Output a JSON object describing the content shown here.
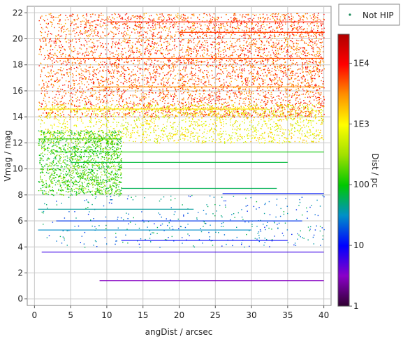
{
  "chart_data": {
    "type": "scatter",
    "xlabel": "angDist / arcsec",
    "ylabel": "Vmag / mag",
    "xlim": [
      -1,
      41
    ],
    "ylim": [
      -0.5,
      22.5
    ],
    "xticks": [
      "0",
      "5",
      "10",
      "15",
      "20",
      "25",
      "30",
      "35",
      "40"
    ],
    "xtick_values": [
      0,
      5,
      10,
      15,
      20,
      25,
      30,
      35,
      40
    ],
    "yticks": [
      "0",
      "2",
      "4",
      "6",
      "8",
      "10",
      "12",
      "14",
      "16",
      "18",
      "20",
      "22"
    ],
    "ytick_values": [
      0,
      2,
      4,
      6,
      8,
      10,
      12,
      14,
      16,
      18,
      20,
      22
    ],
    "grid": true,
    "legend": {
      "position": "top-right",
      "entries": [
        {
          "name": "Not HIP",
          "color": "#1a8a5a"
        }
      ]
    },
    "colorbar": {
      "label": "Dist / pc",
      "scale": "log",
      "range": [
        1,
        30000
      ],
      "ticks": [
        "1",
        "10",
        "100",
        "1E3",
        "1E4"
      ],
      "tick_values": [
        1,
        10,
        100,
        1000,
        10000
      ],
      "colormap": [
        "#300030",
        "#8a00c8",
        "#0000ff",
        "#0090c8",
        "#00c800",
        "#a0e000",
        "#ffff00",
        "#ff9000",
        "#ff0000",
        "#b00000"
      ]
    },
    "density_regions": [
      {
        "x_range": [
          0.5,
          40
        ],
        "vmag_range": [
          14,
          22
        ],
        "dist_pc": 5000,
        "density": "high"
      },
      {
        "x_range": [
          0.5,
          40
        ],
        "vmag_range": [
          12,
          15
        ],
        "dist_pc": 900,
        "density": "medium"
      },
      {
        "x_range": [
          0.5,
          12
        ],
        "vmag_range": [
          8,
          13
        ],
        "dist_pc": 150,
        "density": "medium"
      },
      {
        "x_range": [
          0.5,
          40
        ],
        "vmag_range": [
          4,
          8
        ],
        "dist_pc": 30,
        "density": "low"
      }
    ],
    "streaks": [
      {
        "vmag": 1.4,
        "x_start": 9,
        "x_end": 40,
        "dist_pc": 3
      },
      {
        "vmag": 3.6,
        "x_start": 1,
        "x_end": 40,
        "dist_pc": 6
      },
      {
        "vmag": 4.5,
        "x_start": 12,
        "x_end": 35,
        "dist_pc": 10
      },
      {
        "vmag": 5.3,
        "x_start": 0.5,
        "x_end": 30,
        "dist_pc": 30
      },
      {
        "vmag": 6.0,
        "x_start": 3,
        "x_end": 37,
        "dist_pc": 15
      },
      {
        "vmag": 6.9,
        "x_start": 0.5,
        "x_end": 22,
        "dist_pc": 40
      },
      {
        "vmag": 8.1,
        "x_start": 26,
        "x_end": 40,
        "dist_pc": 12
      },
      {
        "vmag": 8.5,
        "x_start": 12,
        "x_end": 33.5,
        "dist_pc": 60
      },
      {
        "vmag": 10.5,
        "x_start": 5,
        "x_end": 35,
        "dist_pc": 70
      },
      {
        "vmag": 11.3,
        "x_start": 3,
        "x_end": 40,
        "dist_pc": 100
      },
      {
        "vmag": 12.3,
        "x_start": 0.5,
        "x_end": 12,
        "dist_pc": 150
      },
      {
        "vmag": 14.6,
        "x_start": 0.5,
        "x_end": 32,
        "dist_pc": 1200
      },
      {
        "vmag": 16.3,
        "x_start": 8,
        "x_end": 40,
        "dist_pc": 3000
      },
      {
        "vmag": 18.5,
        "x_start": 3,
        "x_end": 40,
        "dist_pc": 5000
      },
      {
        "vmag": 20.5,
        "x_start": 20,
        "x_end": 40,
        "dist_pc": 6000
      },
      {
        "vmag": 21.3,
        "x_start": 10,
        "x_end": 40,
        "dist_pc": 8000
      }
    ]
  }
}
